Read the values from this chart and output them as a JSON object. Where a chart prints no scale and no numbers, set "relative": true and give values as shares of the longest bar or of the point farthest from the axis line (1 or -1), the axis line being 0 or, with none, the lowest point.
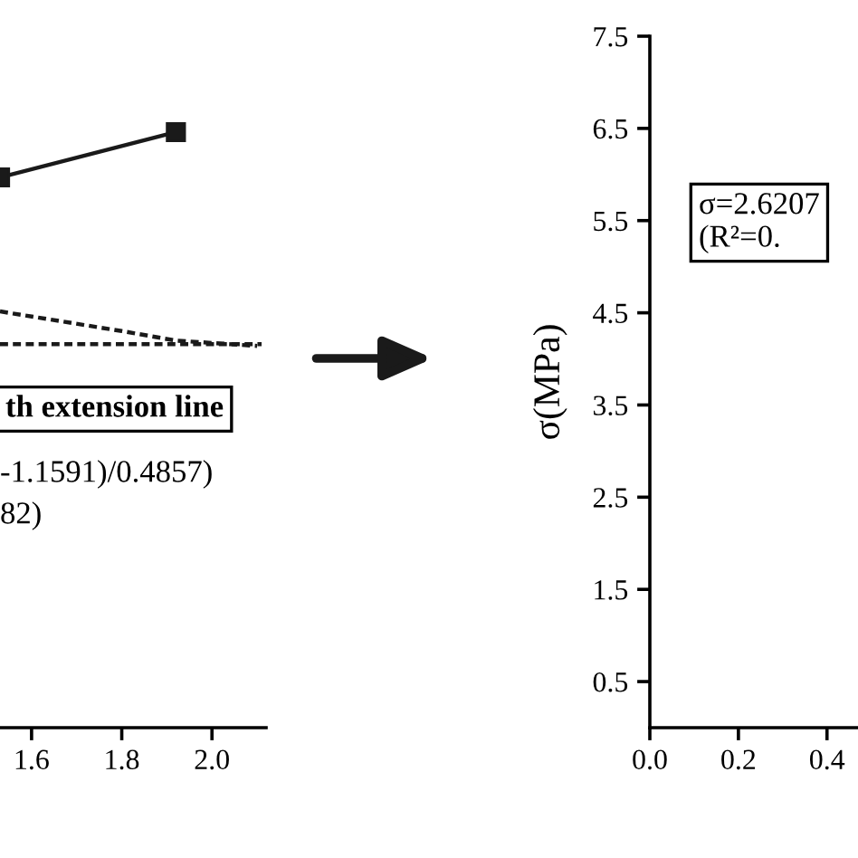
{
  "chart_data": [
    {
      "type": "line",
      "relative": true,
      "x": [
        1.53,
        1.92
      ],
      "xlim": [
        1.53,
        2.12
      ],
      "xticks": [
        1.6,
        1.8,
        {
          "value": 2,
          "label": "2.0"
        }
      ],
      "tick_labels": "x",
      "grid": false,
      "series": [
        {
          "color": "#1a1a1a",
          "values": [
            0.924,
            1.0
          ],
          "marker": "square",
          "line_style": "solid"
        },
        {
          "color": "#1a1a1a",
          "x": [
            1.53,
            1.8,
            1.92,
            2.1
          ],
          "values": [
            0.699,
            0.666,
            0.65,
            0.641
          ],
          "marker": "none",
          "line_style": "dashed"
        },
        {
          "color": "#1a1a1a",
          "x": [
            1.53,
            2.11
          ],
          "values": [
            0.644,
            0.644
          ],
          "marker": "none",
          "line_style": "dashed"
        }
      ],
      "annotations": [
        "th extension line",
        "-1.1591)/0.4857)",
        "82)"
      ]
    },
    {
      "type": "line",
      "xlim": [
        0,
        0.47
      ],
      "xticks": [
        {
          "value": 0,
          "label": "0.0"
        },
        0.2,
        0.4
      ],
      "ylim": [
        0,
        7.5
      ],
      "yticks": [
        0.5,
        1.5,
        2.5,
        3.5,
        4.5,
        5.5,
        6.5,
        7.5
      ],
      "ylabel": "σ(MPa)",
      "grid": false,
      "annotations": [
        "σ=2.6207\n(R²=0."
      ]
    }
  ]
}
